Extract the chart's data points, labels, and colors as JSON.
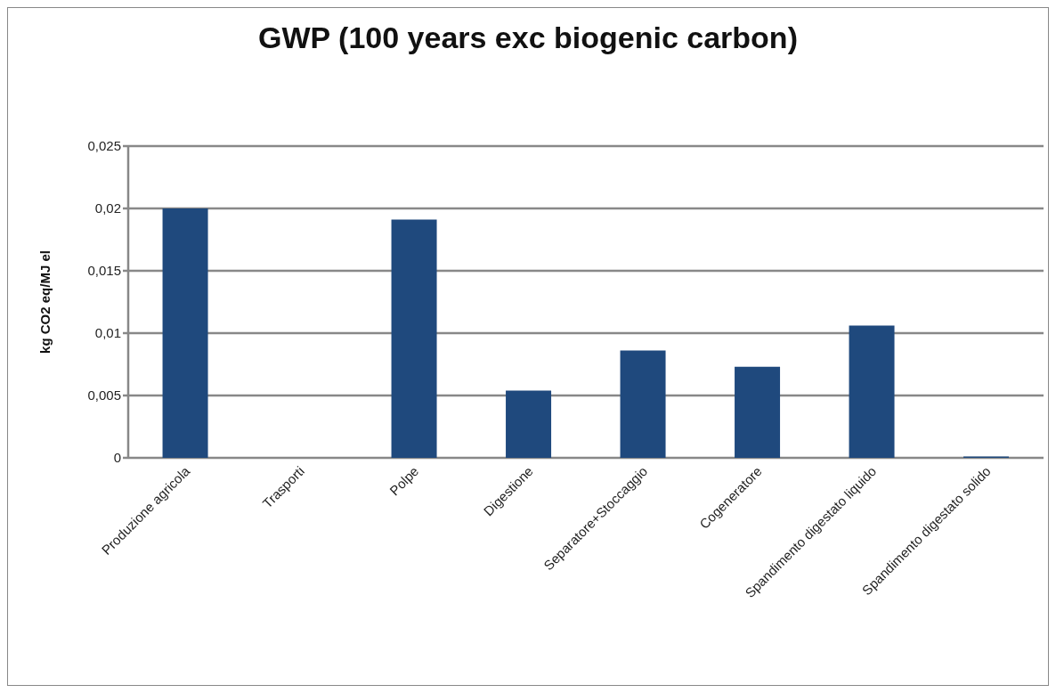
{
  "chart_data": {
    "type": "bar",
    "title": "GWP (100 years exc biogenic carbon)",
    "ylabel": "kg CO2 eq/MJ el",
    "categories": [
      "Produzione agricola",
      "Trasporti",
      "Polpe",
      "Digestione",
      "Separatore+Stoccaggio",
      "Cogeneratore",
      "Spandimento digestato liquido",
      "Spandimento digestato solido"
    ],
    "values": [
      0.02,
      0,
      0.0191,
      0.0054,
      0.0086,
      0.0073,
      0.0106,
      0.0001
    ],
    "color": "#1f497d",
    "ylim": [
      0,
      0.025
    ],
    "yticks": [
      {
        "value": 0,
        "label": "0"
      },
      {
        "value": 0.005,
        "label": "0,005"
      },
      {
        "value": 0.01,
        "label": "0,01"
      },
      {
        "value": 0.015,
        "label": "0,015"
      },
      {
        "value": 0.02,
        "label": "0,02"
      },
      {
        "value": 0.025,
        "label": "0,025"
      }
    ],
    "grid": "y",
    "legend": false
  }
}
